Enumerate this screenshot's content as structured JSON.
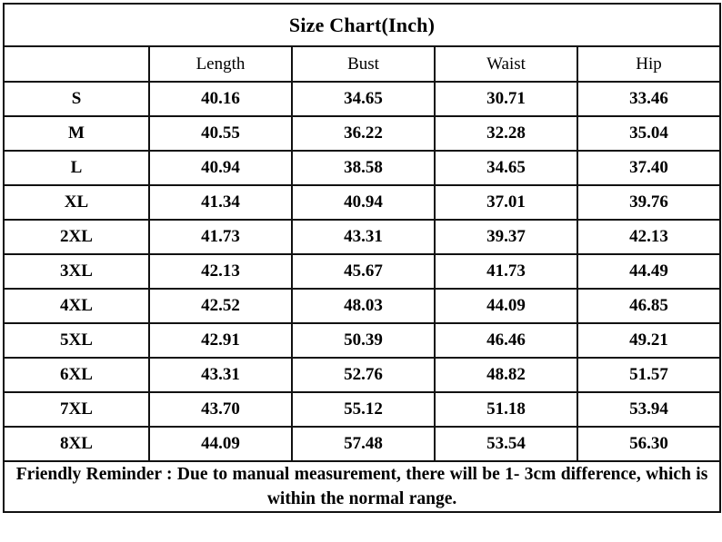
{
  "page": {
    "background": "#ffffff",
    "border_color": "#111111",
    "text_color": "#000000"
  },
  "title": "Size Chart(Inch)",
  "table": {
    "columns": [
      "",
      "Length",
      "Bust",
      "Waist",
      "Hip"
    ],
    "rows": [
      {
        "size": "S",
        "length": "40.16",
        "bust": "34.65",
        "waist": "30.71",
        "hip": "33.46"
      },
      {
        "size": "M",
        "length": "40.55",
        "bust": "36.22",
        "waist": "32.28",
        "hip": "35.04"
      },
      {
        "size": "L",
        "length": "40.94",
        "bust": "38.58",
        "waist": "34.65",
        "hip": "37.40"
      },
      {
        "size": "XL",
        "length": "41.34",
        "bust": "40.94",
        "waist": "37.01",
        "hip": "39.76"
      },
      {
        "size": "2XL",
        "length": "41.73",
        "bust": "43.31",
        "waist": "39.37",
        "hip": "42.13"
      },
      {
        "size": "3XL",
        "length": "42.13",
        "bust": "45.67",
        "waist": "41.73",
        "hip": "44.49"
      },
      {
        "size": "4XL",
        "length": "42.52",
        "bust": "48.03",
        "waist": "44.09",
        "hip": "46.85"
      },
      {
        "size": "5XL",
        "length": "42.91",
        "bust": "50.39",
        "waist": "46.46",
        "hip": "49.21"
      },
      {
        "size": "6XL",
        "length": "43.31",
        "bust": "52.76",
        "waist": "48.82",
        "hip": "51.57"
      },
      {
        "size": "7XL",
        "length": "43.70",
        "bust": "55.12",
        "waist": "51.18",
        "hip": "53.94"
      },
      {
        "size": "8XL",
        "length": "44.09",
        "bust": "57.48",
        "waist": "53.54",
        "hip": "56.30"
      }
    ]
  },
  "footer": {
    "text": "Friendly Reminder : Due to manual measurement, there will be 1- 3cm difference, which is within the normal range."
  }
}
